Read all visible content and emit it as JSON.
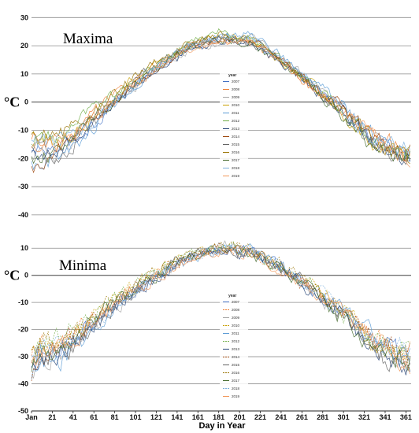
{
  "colors": [
    "#4472c4",
    "#ed7d31",
    "#a5a5a5",
    "#c9a000",
    "#5b9bd5",
    "#70ad47",
    "#264478",
    "#9e480e",
    "#636363",
    "#997300",
    "#43682b",
    "#7cafdd",
    "#f1975a",
    "#b7b7b7",
    "#ffcd33"
  ],
  "chart_data": [
    {
      "type": "line",
      "title": "Maxima",
      "ylabel": "°C",
      "ylim": [
        -42,
        34
      ],
      "yticks": [
        30,
        20,
        10,
        0,
        -10,
        -20,
        -30,
        -40
      ],
      "grid": true,
      "legend": {
        "title": "year",
        "position": "center",
        "entries": [
          "2007",
          "2008",
          "2009",
          "2010",
          "2011",
          "2012",
          "2013",
          "2014",
          "2015",
          "2016",
          "2017",
          "2018",
          "2019"
        ]
      },
      "series": [
        {
          "name": "2007",
          "x": [
            1,
            31,
            61,
            91,
            121,
            151,
            181,
            211,
            241,
            271,
            301,
            331,
            361
          ],
          "values": [
            -18,
            -16,
            -8,
            4,
            12,
            19,
            23,
            22,
            15,
            6,
            -4,
            -14,
            -20
          ]
        },
        {
          "name": "2008",
          "x": [
            1,
            31,
            61,
            91,
            121,
            151,
            181,
            211,
            241,
            271,
            301,
            331,
            361
          ],
          "values": [
            -14,
            -12,
            -4,
            5,
            13,
            20,
            22,
            21,
            14,
            5,
            -3,
            -12,
            -16
          ]
        },
        {
          "name": "2009",
          "x": [
            1,
            31,
            61,
            91,
            121,
            151,
            181,
            211,
            241,
            271,
            301,
            331,
            361
          ],
          "values": [
            -20,
            -18,
            -6,
            3,
            11,
            18,
            21,
            23,
            16,
            7,
            -2,
            -13,
            -22
          ]
        },
        {
          "name": "2010",
          "x": [
            1,
            31,
            61,
            91,
            121,
            151,
            181,
            211,
            241,
            271,
            301,
            331,
            361
          ],
          "values": [
            -12,
            -14,
            -5,
            6,
            14,
            19,
            24,
            22,
            15,
            6,
            -5,
            -15,
            -18
          ]
        },
        {
          "name": "2011",
          "x": [
            1,
            31,
            61,
            91,
            121,
            151,
            181,
            211,
            241,
            271,
            301,
            331,
            361
          ],
          "values": [
            -22,
            -20,
            -9,
            2,
            12,
            20,
            23,
            24,
            17,
            8,
            -1,
            -12,
            -19
          ]
        },
        {
          "name": "2012",
          "x": [
            1,
            31,
            61,
            91,
            121,
            151,
            181,
            211,
            241,
            271,
            301,
            331,
            361
          ],
          "values": [
            -16,
            -10,
            -3,
            5,
            13,
            21,
            25,
            23,
            15,
            6,
            -4,
            -14,
            -17
          ]
        },
        {
          "name": "2013",
          "x": [
            1,
            31,
            61,
            91,
            121,
            151,
            181,
            211,
            241,
            271,
            301,
            331,
            361
          ],
          "values": [
            -19,
            -17,
            -7,
            3,
            11,
            18,
            22,
            21,
            14,
            5,
            -3,
            -15,
            -21
          ]
        },
        {
          "name": "2014",
          "x": [
            1,
            31,
            61,
            91,
            121,
            151,
            181,
            211,
            241,
            271,
            301,
            331,
            361
          ],
          "values": [
            -24,
            -15,
            -6,
            4,
            12,
            19,
            22,
            22,
            16,
            6,
            -2,
            -13,
            -18
          ]
        },
        {
          "name": "2015",
          "x": [
            1,
            31,
            61,
            91,
            121,
            151,
            181,
            211,
            241,
            271,
            301,
            331,
            361
          ],
          "values": [
            -17,
            -19,
            -8,
            5,
            13,
            20,
            23,
            21,
            15,
            7,
            -4,
            -16,
            -22
          ]
        },
        {
          "name": "2016",
          "x": [
            1,
            31,
            61,
            91,
            121,
            151,
            181,
            211,
            241,
            271,
            301,
            331,
            361
          ],
          "values": [
            -13,
            -11,
            -4,
            6,
            14,
            21,
            24,
            22,
            16,
            6,
            -3,
            -14,
            -20
          ]
        },
        {
          "name": "2017",
          "x": [
            1,
            31,
            61,
            91,
            121,
            151,
            181,
            211,
            241,
            271,
            301,
            331,
            361
          ],
          "values": [
            -21,
            -16,
            -5,
            4,
            12,
            19,
            22,
            21,
            14,
            5,
            -5,
            -17,
            -19
          ]
        },
        {
          "name": "2018",
          "x": [
            1,
            31,
            61,
            91,
            121,
            151,
            181,
            211,
            241,
            271,
            301,
            331,
            361
          ],
          "values": [
            -15,
            -13,
            -7,
            3,
            13,
            20,
            23,
            23,
            16,
            7,
            -2,
            -14,
            -16
          ]
        },
        {
          "name": "2019",
          "x": [
            1,
            31,
            61,
            91,
            121,
            151,
            181,
            211,
            241,
            271,
            301,
            331,
            361
          ],
          "values": [
            -18,
            -14,
            -6,
            4,
            11,
            19,
            21,
            22,
            15,
            5,
            -3,
            -12,
            -21
          ]
        }
      ]
    },
    {
      "type": "line",
      "title": "Minima",
      "ylabel": "°C",
      "xlabel": "Day in Year",
      "ylim": [
        -50,
        15
      ],
      "yticks": [
        10,
        0,
        -10,
        -20,
        -30,
        -40,
        -50
      ],
      "xticks": [
        "Jan",
        "21",
        "41",
        "61",
        "81",
        "101",
        "121",
        "141",
        "161",
        "181",
        "201",
        "221",
        "241",
        "261",
        "281",
        "301",
        "321",
        "341",
        "361"
      ],
      "grid": true,
      "legend": {
        "title": "year",
        "position": "center",
        "entries": [
          "2007",
          "2008",
          "2009",
          "2010",
          "2011",
          "2012",
          "2013",
          "2014",
          "2015",
          "2016",
          "2017",
          "2018",
          "2019"
        ]
      },
      "series": [
        {
          "name": "2007",
          "x": [
            1,
            31,
            61,
            91,
            121,
            151,
            181,
            211,
            241,
            271,
            301,
            331,
            361
          ],
          "values": [
            -30,
            -26,
            -18,
            -8,
            0,
            6,
            10,
            9,
            3,
            -5,
            -14,
            -24,
            -30
          ]
        },
        {
          "name": "2008",
          "x": [
            1,
            31,
            61,
            91,
            121,
            151,
            181,
            211,
            241,
            271,
            301,
            331,
            361
          ],
          "values": [
            -26,
            -24,
            -16,
            -7,
            1,
            7,
            9,
            8,
            2,
            -4,
            -13,
            -22,
            -28
          ]
        },
        {
          "name": "2009",
          "x": [
            1,
            31,
            61,
            91,
            121,
            151,
            181,
            211,
            241,
            271,
            301,
            331,
            361
          ],
          "values": [
            -33,
            -29,
            -19,
            -9,
            0,
            6,
            11,
            10,
            3,
            -6,
            -15,
            -25,
            -33
          ]
        },
        {
          "name": "2010",
          "x": [
            1,
            31,
            61,
            91,
            121,
            151,
            181,
            211,
            241,
            271,
            301,
            331,
            361
          ],
          "values": [
            -24,
            -27,
            -15,
            -6,
            2,
            7,
            10,
            9,
            4,
            -4,
            -12,
            -26,
            -29
          ]
        },
        {
          "name": "2011",
          "x": [
            1,
            31,
            61,
            91,
            121,
            151,
            181,
            211,
            241,
            271,
            301,
            331,
            361
          ],
          "values": [
            -35,
            -31,
            -20,
            -8,
            0,
            5,
            9,
            10,
            3,
            -5,
            -13,
            -23,
            -31
          ]
        },
        {
          "name": "2012",
          "x": [
            1,
            31,
            61,
            91,
            121,
            151,
            181,
            211,
            241,
            271,
            301,
            331,
            361
          ],
          "values": [
            -28,
            -22,
            -14,
            -6,
            1,
            7,
            11,
            9,
            2,
            -4,
            -14,
            -24,
            -27
          ]
        },
        {
          "name": "2013",
          "x": [
            1,
            31,
            61,
            91,
            121,
            151,
            181,
            211,
            241,
            271,
            301,
            331,
            361
          ],
          "values": [
            -31,
            -28,
            -18,
            -9,
            -1,
            6,
            9,
            8,
            3,
            -6,
            -15,
            -27,
            -34
          ]
        },
        {
          "name": "2014",
          "x": [
            1,
            31,
            61,
            91,
            121,
            151,
            181,
            211,
            241,
            271,
            301,
            331,
            361
          ],
          "values": [
            -36,
            -25,
            -17,
            -7,
            0,
            6,
            10,
            9,
            2,
            -5,
            -13,
            -24,
            -29
          ]
        },
        {
          "name": "2015",
          "x": [
            1,
            31,
            61,
            91,
            121,
            151,
            181,
            211,
            241,
            271,
            301,
            331,
            361
          ],
          "values": [
            -29,
            -30,
            -19,
            -8,
            1,
            7,
            10,
            8,
            3,
            -4,
            -16,
            -28,
            -35
          ]
        },
        {
          "name": "2016",
          "x": [
            1,
            31,
            61,
            91,
            121,
            151,
            181,
            211,
            241,
            271,
            301,
            331,
            361
          ],
          "values": [
            -25,
            -23,
            -15,
            -6,
            2,
            8,
            11,
            9,
            4,
            -5,
            -14,
            -25,
            -32
          ]
        },
        {
          "name": "2017",
          "x": [
            1,
            31,
            61,
            91,
            121,
            151,
            181,
            211,
            241,
            271,
            301,
            331,
            361
          ],
          "values": [
            -33,
            -27,
            -16,
            -7,
            0,
            6,
            10,
            8,
            2,
            -6,
            -16,
            -29,
            -31
          ]
        },
        {
          "name": "2018",
          "x": [
            1,
            31,
            61,
            91,
            121,
            151,
            181,
            211,
            241,
            271,
            301,
            331,
            361
          ],
          "values": [
            -27,
            -24,
            -18,
            -8,
            1,
            7,
            9,
            10,
            3,
            -4,
            -13,
            -26,
            -28
          ]
        },
        {
          "name": "2019",
          "x": [
            1,
            31,
            61,
            91,
            121,
            151,
            181,
            211,
            241,
            271,
            301,
            331,
            361
          ],
          "values": [
            -30,
            -26,
            -17,
            -7,
            -1,
            6,
            9,
            9,
            2,
            -5,
            -14,
            -23,
            -33
          ]
        }
      ]
    }
  ]
}
